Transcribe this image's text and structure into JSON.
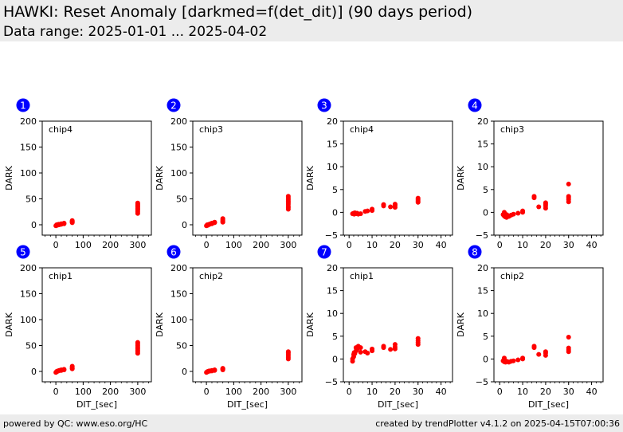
{
  "header": {
    "title": "HAWKI: Reset Anomaly [darkmed=f(det_dit)] (90 days period)",
    "subtitle": "Data range: 2025-01-01 ... 2025-04-02"
  },
  "footer": {
    "left": "powered by QC: www.eso.org/HC",
    "right": "created by trendPlotter v4.1.2 on 2025-04-15T07:00:36"
  },
  "colors": {
    "points": "#ff0000",
    "badge": "#0000ff",
    "header_bg": "#ececec"
  },
  "chart_data": [
    {
      "type": "scatter",
      "number": "1",
      "chip": "chip4",
      "xlabel": "",
      "ylabel": "DARK",
      "xlim": [
        -50,
        350
      ],
      "ylim": [
        -20,
        200
      ],
      "xticks": [
        0,
        100,
        200,
        300
      ],
      "xticklabels": [
        "0",
        "100",
        "200",
        "300"
      ],
      "yticks": [
        0,
        50,
        100,
        150,
        200
      ],
      "yticklabels": [
        "0",
        "50",
        "100",
        "150",
        "200"
      ],
      "points": [
        [
          0,
          -2
        ],
        [
          2,
          -1
        ],
        [
          3,
          0
        ],
        [
          5,
          -1
        ],
        [
          7,
          0
        ],
        [
          10,
          1
        ],
        [
          12,
          0
        ],
        [
          15,
          1
        ],
        [
          20,
          2
        ],
        [
          20,
          1
        ],
        [
          30,
          2
        ],
        [
          30,
          3
        ],
        [
          60,
          4
        ],
        [
          60,
          5
        ],
        [
          60,
          6
        ],
        [
          60,
          7
        ],
        [
          60,
          8
        ],
        [
          300,
          22
        ],
        [
          300,
          25
        ],
        [
          300,
          28
        ],
        [
          300,
          30
        ],
        [
          300,
          32
        ],
        [
          300,
          34
        ],
        [
          300,
          36
        ],
        [
          300,
          38
        ],
        [
          300,
          40
        ],
        [
          300,
          42
        ]
      ]
    },
    {
      "type": "scatter",
      "number": "2",
      "chip": "chip3",
      "xlabel": "",
      "ylabel": "DARK",
      "xlim": [
        -50,
        350
      ],
      "ylim": [
        -20,
        200
      ],
      "xticks": [
        0,
        100,
        200,
        300
      ],
      "xticklabels": [
        "0",
        "100",
        "200",
        "300"
      ],
      "yticks": [
        0,
        50,
        100,
        150,
        200
      ],
      "yticklabels": [
        "0",
        "50",
        "100",
        "150",
        "200"
      ],
      "points": [
        [
          0,
          -2
        ],
        [
          2,
          -1
        ],
        [
          3,
          0
        ],
        [
          5,
          -1
        ],
        [
          7,
          0
        ],
        [
          10,
          1
        ],
        [
          12,
          1
        ],
        [
          15,
          2
        ],
        [
          20,
          2
        ],
        [
          20,
          3
        ],
        [
          30,
          4
        ],
        [
          30,
          5
        ],
        [
          60,
          5
        ],
        [
          60,
          6
        ],
        [
          60,
          8
        ],
        [
          60,
          10
        ],
        [
          60,
          12
        ],
        [
          300,
          30
        ],
        [
          300,
          33
        ],
        [
          300,
          36
        ],
        [
          300,
          40
        ],
        [
          300,
          43
        ],
        [
          300,
          46
        ],
        [
          300,
          49
        ],
        [
          300,
          52
        ],
        [
          300,
          55
        ]
      ]
    },
    {
      "type": "scatter",
      "number": "3",
      "chip": "chip4",
      "xlabel": "",
      "ylabel": "DARK",
      "xlim": [
        -2.5,
        45
      ],
      "ylim": [
        -5,
        20
      ],
      "xticks": [
        0,
        10,
        20,
        30,
        40
      ],
      "xticklabels": [
        "0",
        "10",
        "20",
        "30",
        "40"
      ],
      "yticks": [
        -5,
        0,
        5,
        10,
        15,
        20
      ],
      "yticklabels": [
        "−5",
        "0",
        "5",
        "10",
        "15",
        "20"
      ],
      "points": [
        [
          1.5,
          -0.3
        ],
        [
          2,
          -0.2
        ],
        [
          2.2,
          -0.4
        ],
        [
          2.5,
          -0.1
        ],
        [
          3,
          -0.3
        ],
        [
          3.5,
          -0.2
        ],
        [
          4,
          -0.4
        ],
        [
          5,
          -0.3
        ],
        [
          7,
          0.2
        ],
        [
          8,
          0.3
        ],
        [
          10,
          0.4
        ],
        [
          10,
          0.7
        ],
        [
          15,
          1.4
        ],
        [
          15,
          1.7
        ],
        [
          18,
          1.2
        ],
        [
          20,
          1.1
        ],
        [
          20,
          1.5
        ],
        [
          20,
          1.8
        ],
        [
          30,
          2.2
        ],
        [
          30,
          2.5
        ],
        [
          30,
          2.8
        ],
        [
          30,
          3.1
        ]
      ]
    },
    {
      "type": "scatter",
      "number": "4",
      "chip": "chip3",
      "xlabel": "",
      "ylabel": "DARK",
      "xlim": [
        -2.5,
        45
      ],
      "ylim": [
        -5,
        20
      ],
      "xticks": [
        0,
        10,
        20,
        30,
        40
      ],
      "xticklabels": [
        "0",
        "10",
        "20",
        "30",
        "40"
      ],
      "yticks": [
        -5,
        0,
        5,
        10,
        15,
        20
      ],
      "yticklabels": [
        "−5",
        "0",
        "5",
        "10",
        "15",
        "20"
      ],
      "points": [
        [
          1.5,
          -0.5
        ],
        [
          2,
          0
        ],
        [
          2,
          -0.8
        ],
        [
          2.5,
          -1
        ],
        [
          3,
          -0.5
        ],
        [
          3,
          -1.1
        ],
        [
          3.5,
          -0.7
        ],
        [
          4,
          -0.9
        ],
        [
          5,
          -0.6
        ],
        [
          6,
          -0.4
        ],
        [
          8,
          -0.2
        ],
        [
          10,
          0
        ],
        [
          10,
          0.3
        ],
        [
          15,
          3.2
        ],
        [
          15,
          3.5
        ],
        [
          17,
          1.2
        ],
        [
          20,
          0.9
        ],
        [
          20,
          1.4
        ],
        [
          20,
          1.8
        ],
        [
          20,
          2.1
        ],
        [
          30,
          2.3
        ],
        [
          30,
          2.8
        ],
        [
          30,
          3.2
        ],
        [
          30,
          3.5
        ],
        [
          30,
          6.2
        ]
      ]
    },
    {
      "type": "scatter",
      "number": "5",
      "chip": "chip1",
      "xlabel": "DIT_[sec]",
      "ylabel": "DARK",
      "xlim": [
        -50,
        350
      ],
      "ylim": [
        -20,
        200
      ],
      "xticks": [
        0,
        100,
        200,
        300
      ],
      "xticklabels": [
        "0",
        "100",
        "200",
        "300"
      ],
      "yticks": [
        0,
        50,
        100,
        150,
        200
      ],
      "yticklabels": [
        "0",
        "50",
        "100",
        "150",
        "200"
      ],
      "points": [
        [
          0,
          -2
        ],
        [
          2,
          -1
        ],
        [
          3,
          0
        ],
        [
          5,
          0
        ],
        [
          7,
          1
        ],
        [
          10,
          1
        ],
        [
          12,
          2
        ],
        [
          15,
          2
        ],
        [
          20,
          3
        ],
        [
          20,
          2
        ],
        [
          30,
          3
        ],
        [
          30,
          4
        ],
        [
          60,
          5
        ],
        [
          60,
          6
        ],
        [
          60,
          8
        ],
        [
          60,
          10
        ],
        [
          300,
          35
        ],
        [
          300,
          38
        ],
        [
          300,
          41
        ],
        [
          300,
          44
        ],
        [
          300,
          47
        ],
        [
          300,
          50
        ],
        [
          300,
          53
        ],
        [
          300,
          56
        ]
      ]
    },
    {
      "type": "scatter",
      "number": "6",
      "chip": "chip2",
      "xlabel": "DIT_[sec]",
      "ylabel": "DARK",
      "xlim": [
        -50,
        350
      ],
      "ylim": [
        -20,
        200
      ],
      "xticks": [
        0,
        100,
        200,
        300
      ],
      "xticklabels": [
        "0",
        "100",
        "200",
        "300"
      ],
      "yticks": [
        0,
        50,
        100,
        150,
        200
      ],
      "yticklabels": [
        "0",
        "50",
        "100",
        "150",
        "200"
      ],
      "points": [
        [
          0,
          -2
        ],
        [
          2,
          -1
        ],
        [
          3,
          -1
        ],
        [
          5,
          0
        ],
        [
          7,
          0
        ],
        [
          10,
          1
        ],
        [
          12,
          1
        ],
        [
          15,
          1
        ],
        [
          20,
          2
        ],
        [
          20,
          1
        ],
        [
          30,
          2
        ],
        [
          30,
          3
        ],
        [
          60,
          3
        ],
        [
          60,
          4
        ],
        [
          60,
          5
        ],
        [
          60,
          6
        ],
        [
          300,
          24
        ],
        [
          300,
          27
        ],
        [
          300,
          30
        ],
        [
          300,
          33
        ],
        [
          300,
          36
        ],
        [
          300,
          38
        ]
      ]
    },
    {
      "type": "scatter",
      "number": "7",
      "chip": "chip1",
      "xlabel": "DIT_[sec]",
      "ylabel": "DARK",
      "xlim": [
        -2.5,
        45
      ],
      "ylim": [
        -5,
        20
      ],
      "xticks": [
        0,
        10,
        20,
        30,
        40
      ],
      "xticklabels": [
        "0",
        "10",
        "20",
        "30",
        "40"
      ],
      "yticks": [
        -5,
        0,
        5,
        10,
        15,
        20
      ],
      "yticklabels": [
        "−5",
        "0",
        "5",
        "10",
        "15",
        "20"
      ],
      "points": [
        [
          1.5,
          -0.5
        ],
        [
          1.5,
          0
        ],
        [
          2,
          0.5
        ],
        [
          2,
          1
        ],
        [
          2.2,
          1.4
        ],
        [
          2.5,
          1.2
        ],
        [
          3,
          2.5
        ],
        [
          3,
          1.8
        ],
        [
          3.5,
          2.2
        ],
        [
          4,
          2.8
        ],
        [
          5,
          2.5
        ],
        [
          5,
          1.5
        ],
        [
          7,
          1.6
        ],
        [
          8,
          1.3
        ],
        [
          10,
          1.8
        ],
        [
          10,
          2.2
        ],
        [
          15,
          2.5
        ],
        [
          15,
          2.8
        ],
        [
          18,
          2.1
        ],
        [
          20,
          2.2
        ],
        [
          20,
          2.6
        ],
        [
          20,
          3.2
        ],
        [
          30,
          3.2
        ],
        [
          30,
          3.6
        ],
        [
          30,
          4
        ],
        [
          30,
          4.5
        ]
      ]
    },
    {
      "type": "scatter",
      "number": "8",
      "chip": "chip2",
      "xlabel": "DIT_[sec]",
      "ylabel": "DARK",
      "xlim": [
        -2.5,
        45
      ],
      "ylim": [
        -5,
        20
      ],
      "xticks": [
        0,
        10,
        20,
        30,
        40
      ],
      "xticklabels": [
        "0",
        "10",
        "20",
        "30",
        "40"
      ],
      "yticks": [
        -5,
        0,
        5,
        10,
        15,
        20
      ],
      "yticklabels": [
        "−5",
        "0",
        "5",
        "10",
        "15",
        "20"
      ],
      "points": [
        [
          1.5,
          -0.4
        ],
        [
          2,
          0.2
        ],
        [
          2,
          -0.6
        ],
        [
          2.5,
          -0.7
        ],
        [
          3,
          -0.5
        ],
        [
          3.5,
          -0.6
        ],
        [
          4,
          -0.7
        ],
        [
          5,
          -0.5
        ],
        [
          6,
          -0.4
        ],
        [
          8,
          -0.2
        ],
        [
          10,
          0
        ],
        [
          10,
          0.2
        ],
        [
          15,
          2.5
        ],
        [
          15,
          2.8
        ],
        [
          17,
          1
        ],
        [
          20,
          0.8
        ],
        [
          20,
          1.3
        ],
        [
          20,
          1.6
        ],
        [
          30,
          1.6
        ],
        [
          30,
          2
        ],
        [
          30,
          2.4
        ],
        [
          30,
          4.8
        ]
      ]
    }
  ]
}
